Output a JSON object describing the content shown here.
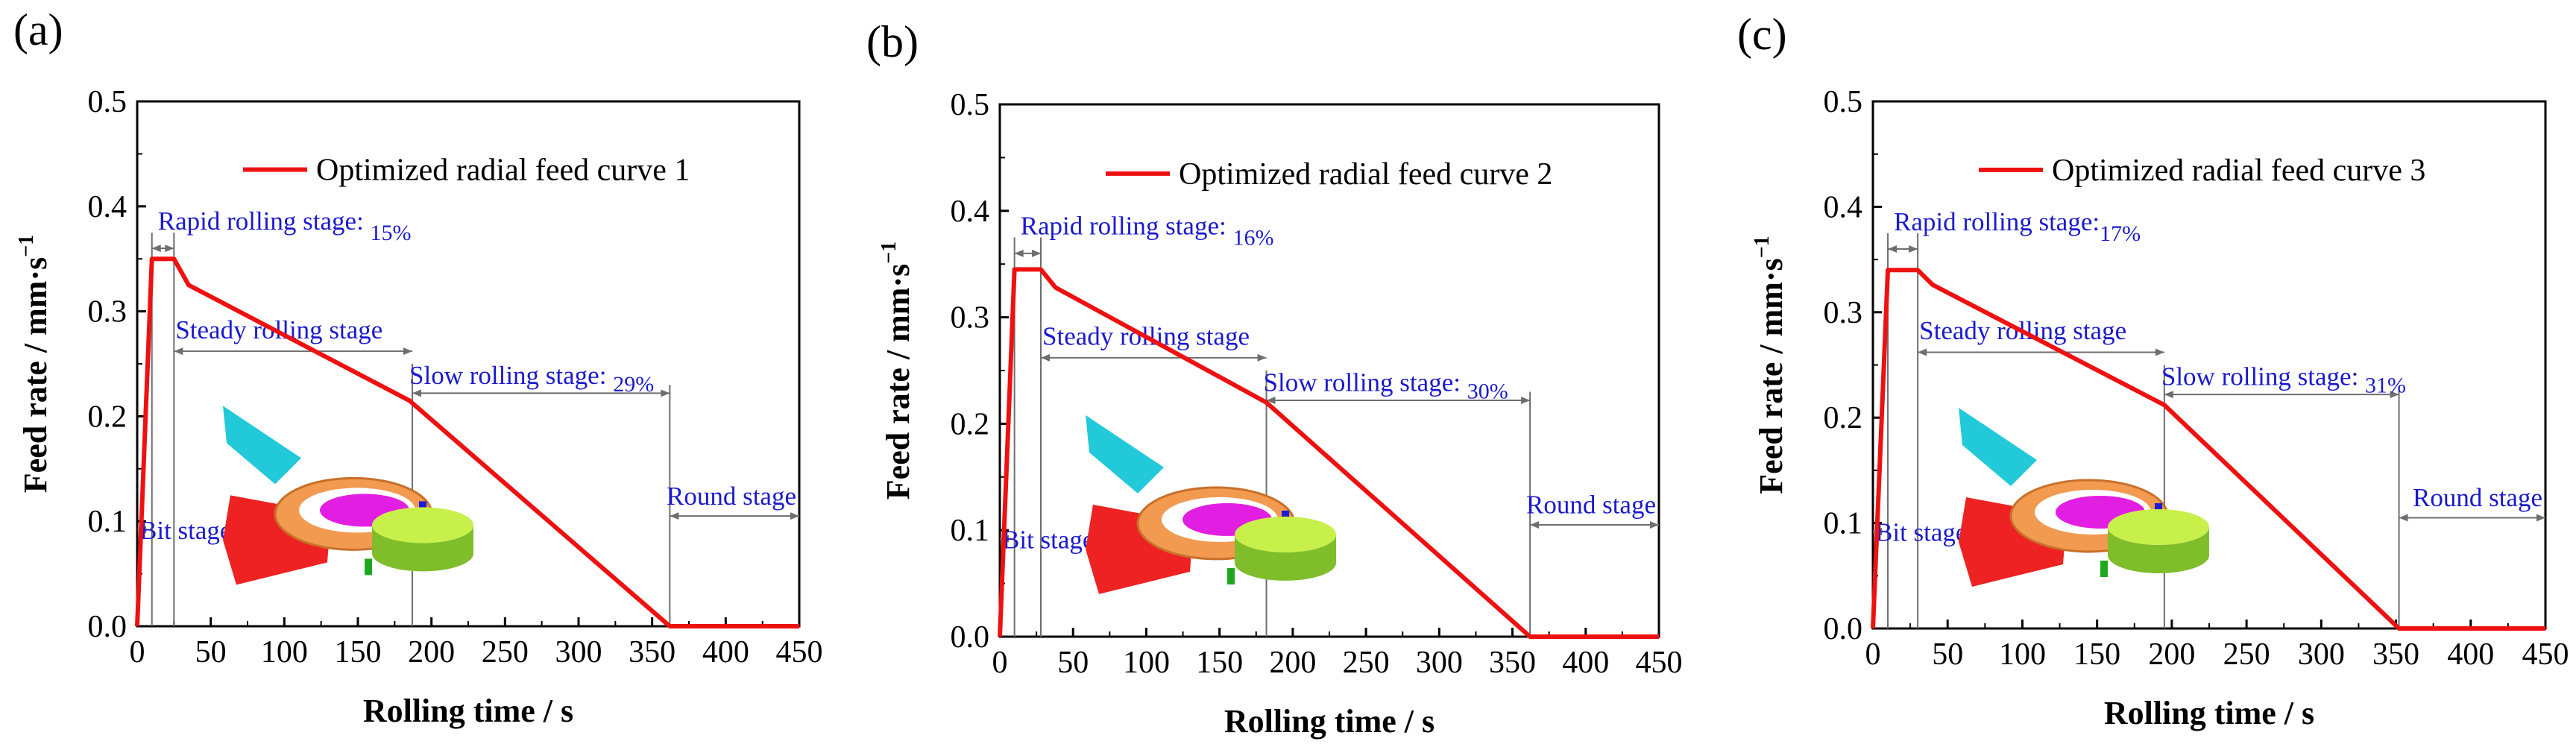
{
  "chart_data": [
    {
      "type": "line",
      "panel_label": "(a)",
      "xlabel": "Rolling time / s",
      "ylabel": "Feed rate / mm·s",
      "ylabel_sup": "−1",
      "xlim": [
        0,
        450
      ],
      "ylim": [
        0,
        0.5
      ],
      "xticks": [
        "0",
        "50",
        "100",
        "150",
        "200",
        "250",
        "300",
        "350",
        "400",
        "450"
      ],
      "yticks": [
        "0.0",
        "0.1",
        "0.2",
        "0.3",
        "0.4",
        "0.5"
      ],
      "series": [
        {
          "name": "Optimized radial feed curve 1",
          "color": "#ee1111",
          "x": [
            0,
            10,
            25,
            35,
            185,
            362,
            450
          ],
          "y": [
            0,
            0.35,
            0.35,
            0.325,
            0.215,
            0,
            0
          ]
        }
      ],
      "stages": {
        "rapid": {
          "label": "Rapid rolling stage: ",
          "percent": "15%",
          "x": [
            10,
            25
          ]
        },
        "steady": {
          "label": "Steady rolling stage",
          "x": [
            25,
            187
          ]
        },
        "slow": {
          "label": "Slow rolling stage: ",
          "percent": "29%",
          "x": [
            187,
            362
          ]
        },
        "round": {
          "label": "Round stage",
          "x": [
            362,
            450
          ]
        },
        "bite": {
          "label": "Bit stage"
        }
      }
    },
    {
      "type": "line",
      "panel_label": "(b)",
      "xlabel": "Rolling time / s",
      "ylabel": "Feed rate / mm·s",
      "ylabel_sup": "−1",
      "xlim": [
        0,
        450
      ],
      "ylim": [
        0,
        0.5
      ],
      "xticks": [
        "0",
        "50",
        "100",
        "150",
        "200",
        "250",
        "300",
        "350",
        "400",
        "450"
      ],
      "yticks": [
        "0.0",
        "0.1",
        "0.2",
        "0.3",
        "0.4",
        "0.5"
      ],
      "series": [
        {
          "name": "Optimized radial feed curve 2",
          "color": "#ee1111",
          "x": [
            0,
            10,
            28,
            38,
            182,
            362,
            450
          ],
          "y": [
            0,
            0.345,
            0.345,
            0.328,
            0.22,
            0,
            0
          ]
        }
      ],
      "stages": {
        "rapid": {
          "label": "Rapid rolling stage: ",
          "percent": "16%",
          "x": [
            10,
            28
          ]
        },
        "steady": {
          "label": "Steady rolling stage",
          "x": [
            28,
            182
          ]
        },
        "slow": {
          "label": "Slow rolling stage: ",
          "percent": "30%",
          "x": [
            182,
            362
          ]
        },
        "round": {
          "label": "Round stage",
          "x": [
            362,
            450
          ]
        },
        "bite": {
          "label": "Bit stage"
        }
      }
    },
    {
      "type": "line",
      "panel_label": "(c)",
      "xlabel": "Rolling time / s",
      "ylabel": "Feed rate / mm·s",
      "ylabel_sup": "−1",
      "xlim": [
        0,
        450
      ],
      "ylim": [
        0,
        0.5
      ],
      "xticks": [
        "0",
        "50",
        "100",
        "150",
        "200",
        "250",
        "300",
        "350",
        "400",
        "450"
      ],
      "yticks": [
        "0.0",
        "0.1",
        "0.2",
        "0.3",
        "0.4",
        "0.5"
      ],
      "series": [
        {
          "name": "Optimized radial feed curve 3",
          "color": "#ee1111",
          "x": [
            0,
            10,
            30,
            40,
            195,
            352,
            450
          ],
          "y": [
            0,
            0.34,
            0.34,
            0.326,
            0.212,
            0,
            0
          ]
        }
      ],
      "stages": {
        "rapid": {
          "label": "Rapid rolling stage:",
          "percent": "17%",
          "x": [
            10,
            30
          ]
        },
        "steady": {
          "label": "Steady rolling stage",
          "x": [
            30,
            195
          ]
        },
        "slow": {
          "label": "Slow rolling stage: ",
          "percent": "31%",
          "x": [
            195,
            352
          ]
        },
        "round": {
          "label": "Round stage",
          "x": [
            352,
            450
          ]
        },
        "bite": {
          "label": "Bit stage"
        }
      }
    }
  ]
}
